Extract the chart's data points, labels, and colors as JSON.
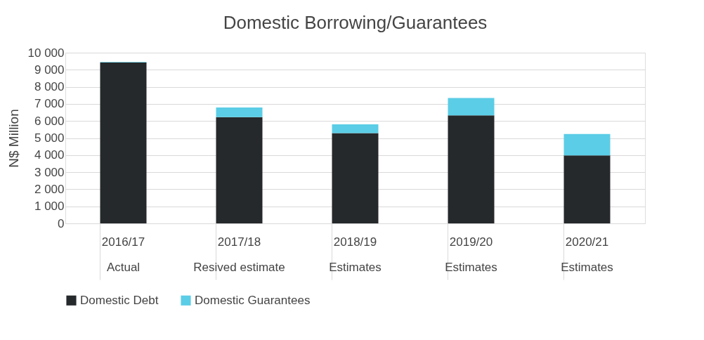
{
  "chart_data": {
    "type": "bar",
    "title": "Domestic Borrowing/Guarantees",
    "ylabel": "N$ Million",
    "categories": [
      "2016/17\nActual",
      "2017/18\nResived estimate",
      "2018/19\nEstimates",
      "2019/20\nEstimates",
      "2020/21\nEstimates"
    ],
    "stacked": true,
    "series": [
      {
        "name": "Domestic Debt",
        "color": "#25292b",
        "values": [
          9420,
          6220,
          5290,
          6330,
          3980
        ]
      },
      {
        "name": "Domestic Guarantees",
        "color": "#5bcde6",
        "values": [
          30,
          570,
          510,
          1020,
          1260
        ]
      }
    ],
    "ylim": [
      0,
      10000
    ],
    "yticks": [
      {
        "value": 0,
        "label": "0"
      },
      {
        "value": 1000,
        "label": "1 000"
      },
      {
        "value": 2000,
        "label": "2 000"
      },
      {
        "value": 3000,
        "label": "3 000"
      },
      {
        "value": 4000,
        "label": "4 000"
      },
      {
        "value": 5000,
        "label": "5 000"
      },
      {
        "value": 6000,
        "label": "6 000"
      },
      {
        "value": 7000,
        "label": "7 000"
      },
      {
        "value": 8000,
        "label": "8 000"
      },
      {
        "value": 9000,
        "label": "9 000"
      },
      {
        "value": 10000,
        "label": "10 000"
      }
    ],
    "grid": "y",
    "legend": "bottom"
  }
}
